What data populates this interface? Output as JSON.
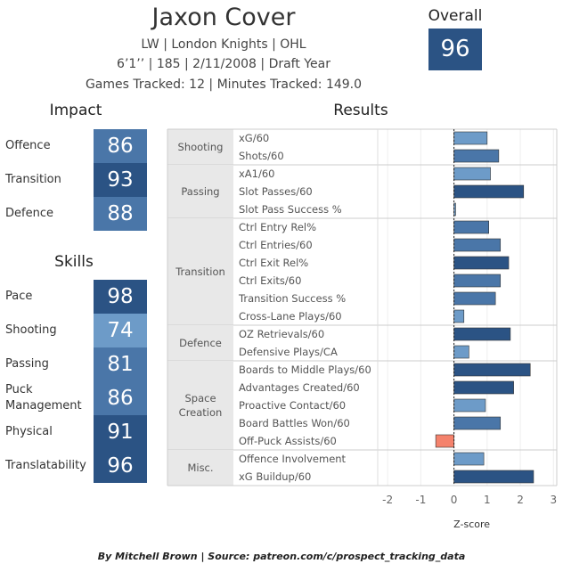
{
  "colors": {
    "dark_blue": "#2b5384",
    "mid_blue": "#4a76a8",
    "light_blue": "#6d9bc8",
    "negative_bar": "#f4826c",
    "category_bg": "#e8e8e8"
  },
  "header": {
    "name": "Jaxon Cover",
    "team_line": "LW | London Knights | OHL",
    "bio_line": "6’1’’ | 185 | 2/11/2008 |  Draft Year",
    "tracked_line": "Games Tracked: 12 | Minutes Tracked: 149.0"
  },
  "overall": {
    "label": "Overall",
    "value": "96"
  },
  "impact": {
    "title": "Impact",
    "items": [
      {
        "label": "Offence",
        "value": "86",
        "color": "#4a76a8"
      },
      {
        "label": "Transition",
        "value": "93",
        "color": "#2b5384"
      },
      {
        "label": "Defence",
        "value": "88",
        "color": "#4a76a8"
      }
    ]
  },
  "skills": {
    "title": "Skills",
    "items": [
      {
        "label": "Pace",
        "value": "98",
        "color": "#2b5384"
      },
      {
        "label": "Shooting",
        "value": "74",
        "color": "#6d9bc8"
      },
      {
        "label": "Passing",
        "value": "81",
        "color": "#4a76a8"
      },
      {
        "label": "Puck Management",
        "value": "86",
        "color": "#4a76a8"
      },
      {
        "label": "Physical",
        "value": "91",
        "color": "#2b5384"
      },
      {
        "label": "Translatability",
        "value": "96",
        "color": "#2b5384"
      }
    ]
  },
  "chart_data": {
    "type": "bar",
    "orientation": "horizontal",
    "title": "Results",
    "xlabel": "Z-score",
    "xlim": [
      -2.3,
      3.1
    ],
    "xticks": [
      -2,
      -1,
      0,
      1,
      2,
      3
    ],
    "grid": true,
    "groups": [
      {
        "name": "Shooting",
        "metrics": [
          {
            "label": "xG/60",
            "value": 1.0,
            "color": "#6d9bc8"
          },
          {
            "label": "Shots/60",
            "value": 1.35,
            "color": "#4a76a8"
          }
        ]
      },
      {
        "name": "Passing",
        "metrics": [
          {
            "label": "xA1/60",
            "value": 1.1,
            "color": "#6d9bc8"
          },
          {
            "label": "Slot Passes/60",
            "value": 2.1,
            "color": "#2b5384"
          },
          {
            "label": "Slot Pass Success %",
            "value": 0.05,
            "color": "#6d9bc8"
          }
        ]
      },
      {
        "name": "Transition",
        "metrics": [
          {
            "label": "Ctrl Entry Rel%",
            "value": 1.05,
            "color": "#4a76a8"
          },
          {
            "label": "Ctrl Entries/60",
            "value": 1.4,
            "color": "#4a76a8"
          },
          {
            "label": "Ctrl Exit Rel%",
            "value": 1.65,
            "color": "#2b5384"
          },
          {
            "label": "Ctrl Exits/60",
            "value": 1.4,
            "color": "#4a76a8"
          },
          {
            "label": "Transition Success %",
            "value": 1.25,
            "color": "#4a76a8"
          },
          {
            "label": "Cross-Lane Plays/60",
            "value": 0.3,
            "color": "#6d9bc8"
          }
        ]
      },
      {
        "name": "Defence",
        "metrics": [
          {
            "label": "OZ Retrievals/60",
            "value": 1.7,
            "color": "#2b5384"
          },
          {
            "label": "Defensive Plays/CA",
            "value": 0.45,
            "color": "#6d9bc8"
          }
        ]
      },
      {
        "name": "Space Creation",
        "metrics": [
          {
            "label": "Boards to Middle Plays/60",
            "value": 2.3,
            "color": "#2b5384"
          },
          {
            "label": "Advantages Created/60",
            "value": 1.8,
            "color": "#2b5384"
          },
          {
            "label": "Proactive Contact/60",
            "value": 0.95,
            "color": "#6d9bc8"
          },
          {
            "label": "Board Battles Won/60",
            "value": 1.4,
            "color": "#4a76a8"
          },
          {
            "label": "Off-Puck Assists/60",
            "value": -0.55,
            "color": "#f4826c"
          }
        ]
      },
      {
        "name": "Misc.",
        "metrics": [
          {
            "label": "Offence Involvement",
            "value": 0.9,
            "color": "#6d9bc8"
          },
          {
            "label": "xG Buildup/60",
            "value": 2.4,
            "color": "#2b5384"
          }
        ]
      }
    ]
  },
  "footer": "By Mitchell Brown | Source: patreon.com/c/prospect_tracking_data"
}
